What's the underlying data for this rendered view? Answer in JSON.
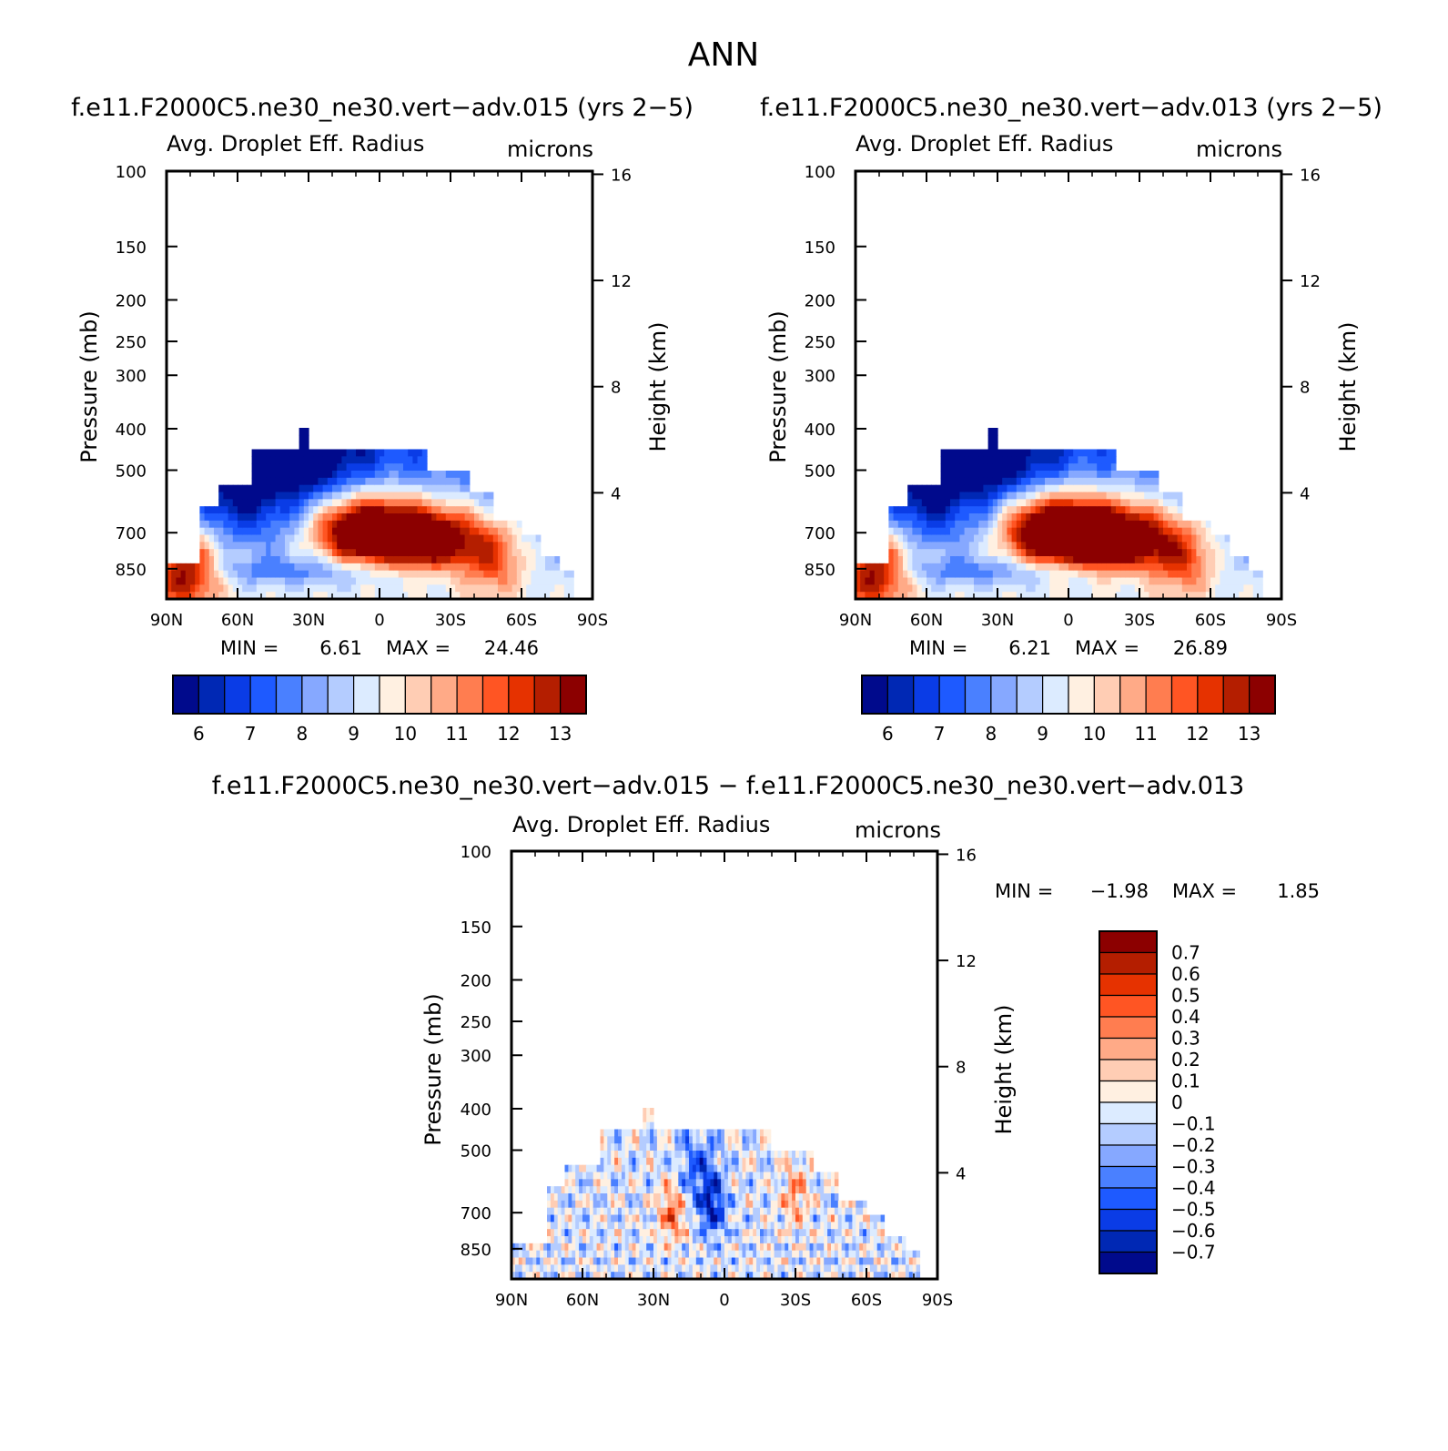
{
  "figure": {
    "title": "ANN"
  },
  "colors": {
    "abs_palette": [
      "#000a8c",
      "#0028b4",
      "#0a3ce6",
      "#1e5aff",
      "#4a80ff",
      "#86a8ff",
      "#b4ccff",
      "#dcebff",
      "#fff0e1",
      "#ffcdb4",
      "#ffaa87",
      "#ff7d50",
      "#ff5523",
      "#e63200",
      "#b41e00",
      "#8c0000"
    ],
    "diff_palette": [
      "#000a8c",
      "#0028b4",
      "#0a3ce6",
      "#1e5aff",
      "#4a80ff",
      "#86a8ff",
      "#b4ccff",
      "#dcebff",
      "#fff0e1",
      "#ffcdb4",
      "#ffaa87",
      "#ff7d50",
      "#ff5523",
      "#e63200",
      "#b41e00",
      "#8c0000"
    ]
  },
  "chart_data": [
    {
      "type": "heatmap",
      "title": "f.e11.F2000C5.ne30_ne30.vert−adv.015 (yrs 2−5)",
      "subtitle": "Avg. Droplet Eff. Radius",
      "units": "microns",
      "ylabel": "Pressure (mb)",
      "ylabel_right": "Height (km)",
      "x_ticks": [
        "90N",
        "60N",
        "30N",
        "0",
        "30S",
        "60S",
        "90S"
      ],
      "xlim": [
        90,
        -90
      ],
      "y_ticks": [
        100,
        150,
        200,
        250,
        300,
        400,
        500,
        700,
        850
      ],
      "ylim": [
        100,
        1000
      ],
      "y_scale": "log",
      "height_ticks": [
        16,
        12,
        8,
        4
      ],
      "stats": {
        "min_label": "MIN =",
        "min": "6.61",
        "max_label": "MAX =",
        "max": "24.46"
      },
      "colorbar": {
        "orientation": "horizontal",
        "labels": [
          "6",
          "7",
          "8",
          "9",
          "10",
          "11",
          "12",
          "13"
        ],
        "levels": [
          5.5,
          6,
          6.5,
          7,
          7.5,
          8,
          8.5,
          9,
          9.5,
          10,
          10.5,
          11,
          11.5,
          12,
          12.5,
          13,
          13.5
        ]
      },
      "grid": false
    },
    {
      "type": "heatmap",
      "title": "f.e11.F2000C5.ne30_ne30.vert−adv.013 (yrs 2−5)",
      "subtitle": "Avg. Droplet Eff. Radius",
      "units": "microns",
      "ylabel": "Pressure (mb)",
      "ylabel_right": "Height (km)",
      "x_ticks": [
        "90N",
        "60N",
        "30N",
        "0",
        "30S",
        "60S",
        "90S"
      ],
      "xlim": [
        90,
        -90
      ],
      "y_ticks": [
        100,
        150,
        200,
        250,
        300,
        400,
        500,
        700,
        850
      ],
      "ylim": [
        100,
        1000
      ],
      "y_scale": "log",
      "height_ticks": [
        16,
        12,
        8,
        4
      ],
      "stats": {
        "min_label": "MIN =",
        "min": "6.21",
        "max_label": "MAX =",
        "max": "26.89"
      },
      "colorbar": {
        "orientation": "horizontal",
        "labels": [
          "6",
          "7",
          "8",
          "9",
          "10",
          "11",
          "12",
          "13"
        ],
        "levels": [
          5.5,
          6,
          6.5,
          7,
          7.5,
          8,
          8.5,
          9,
          9.5,
          10,
          10.5,
          11,
          11.5,
          12,
          12.5,
          13,
          13.5
        ]
      },
      "grid": false
    },
    {
      "type": "heatmap",
      "title": "f.e11.F2000C5.ne30_ne30.vert−adv.015 − f.e11.F2000C5.ne30_ne30.vert−adv.013",
      "subtitle": "Avg. Droplet Eff. Radius",
      "units": "microns",
      "ylabel": "Pressure (mb)",
      "ylabel_right": "Height (km)",
      "x_ticks": [
        "90N",
        "60N",
        "30N",
        "0",
        "30S",
        "60S",
        "90S"
      ],
      "xlim": [
        90,
        -90
      ],
      "y_ticks": [
        100,
        150,
        200,
        250,
        300,
        400,
        500,
        700,
        850
      ],
      "ylim": [
        100,
        1000
      ],
      "y_scale": "log",
      "height_ticks": [
        16,
        12,
        8,
        4
      ],
      "stats": {
        "min_label": "MIN =",
        "min": "−1.98",
        "max_label": "MAX =",
        "max": "1.85"
      },
      "colorbar": {
        "orientation": "vertical",
        "labels": [
          "0.7",
          "0.6",
          "0.5",
          "0.4",
          "0.3",
          "0.2",
          "0.1",
          "0",
          "−0.1",
          "−0.2",
          "−0.3",
          "−0.4",
          "−0.5",
          "−0.6",
          "−0.7"
        ],
        "levels": [
          -0.8,
          -0.7,
          -0.6,
          -0.5,
          -0.4,
          -0.3,
          -0.2,
          -0.1,
          0,
          0.1,
          0.2,
          0.3,
          0.4,
          0.5,
          0.6,
          0.7,
          0.8
        ]
      },
      "grid": false
    }
  ]
}
